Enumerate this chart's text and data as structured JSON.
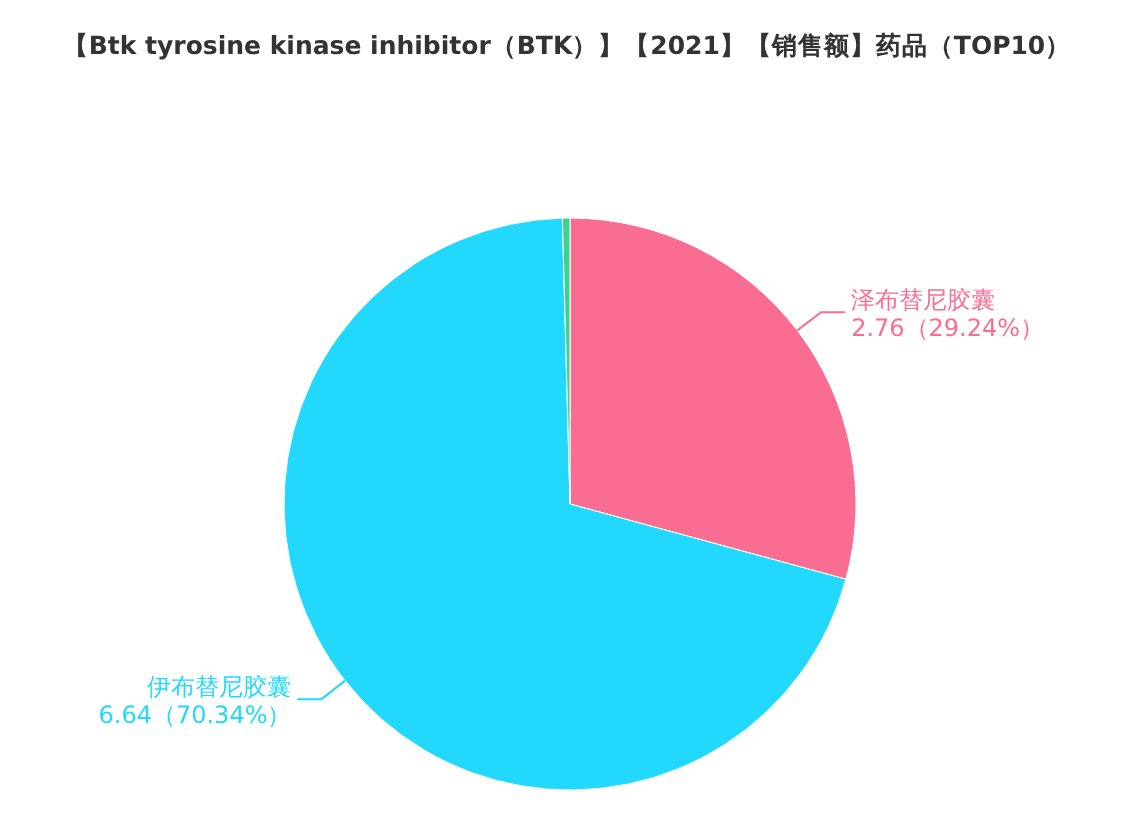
{
  "chart_data": {
    "type": "pie",
    "title": "【Btk tyrosine kinase inhibitor（BTK）】【2021】【销售额】药品（TOP10）",
    "categories": [
      "泽布替尼胶囊",
      "伊布替尼胶囊",
      null
    ],
    "values": [
      2.76,
      6.64,
      0.04
    ],
    "colors": [
      "#fa6d92",
      "#22d9fd",
      "#3fd28f"
    ],
    "value_labels": [
      "2.76（29.24%）",
      "6.64（70.34%）",
      null
    ],
    "legend": false
  }
}
